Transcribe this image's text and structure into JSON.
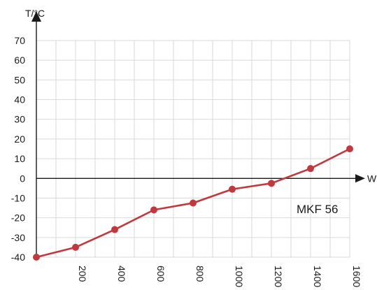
{
  "chart_data": {
    "type": "line",
    "title": "",
    "xlabel": "W",
    "ylabel": "T/°C",
    "xlim": [
      0,
      1600
    ],
    "ylim": [
      -40,
      70
    ],
    "x_ticks": [
      200,
      400,
      600,
      800,
      1000,
      1200,
      1400,
      1600
    ],
    "y_ticks": [
      -40,
      -30,
      -20,
      -10,
      0,
      10,
      20,
      30,
      40,
      50,
      60,
      70
    ],
    "grid": true,
    "annotation": "MKF 56",
    "series": [
      {
        "color": "#c0393f",
        "x": [
          0,
          200,
          400,
          600,
          800,
          1000,
          1200,
          1400,
          1600
        ],
        "y": [
          -40,
          -35,
          -26,
          -16,
          -12.5,
          -5.5,
          -2.5,
          5,
          15
        ]
      }
    ]
  }
}
